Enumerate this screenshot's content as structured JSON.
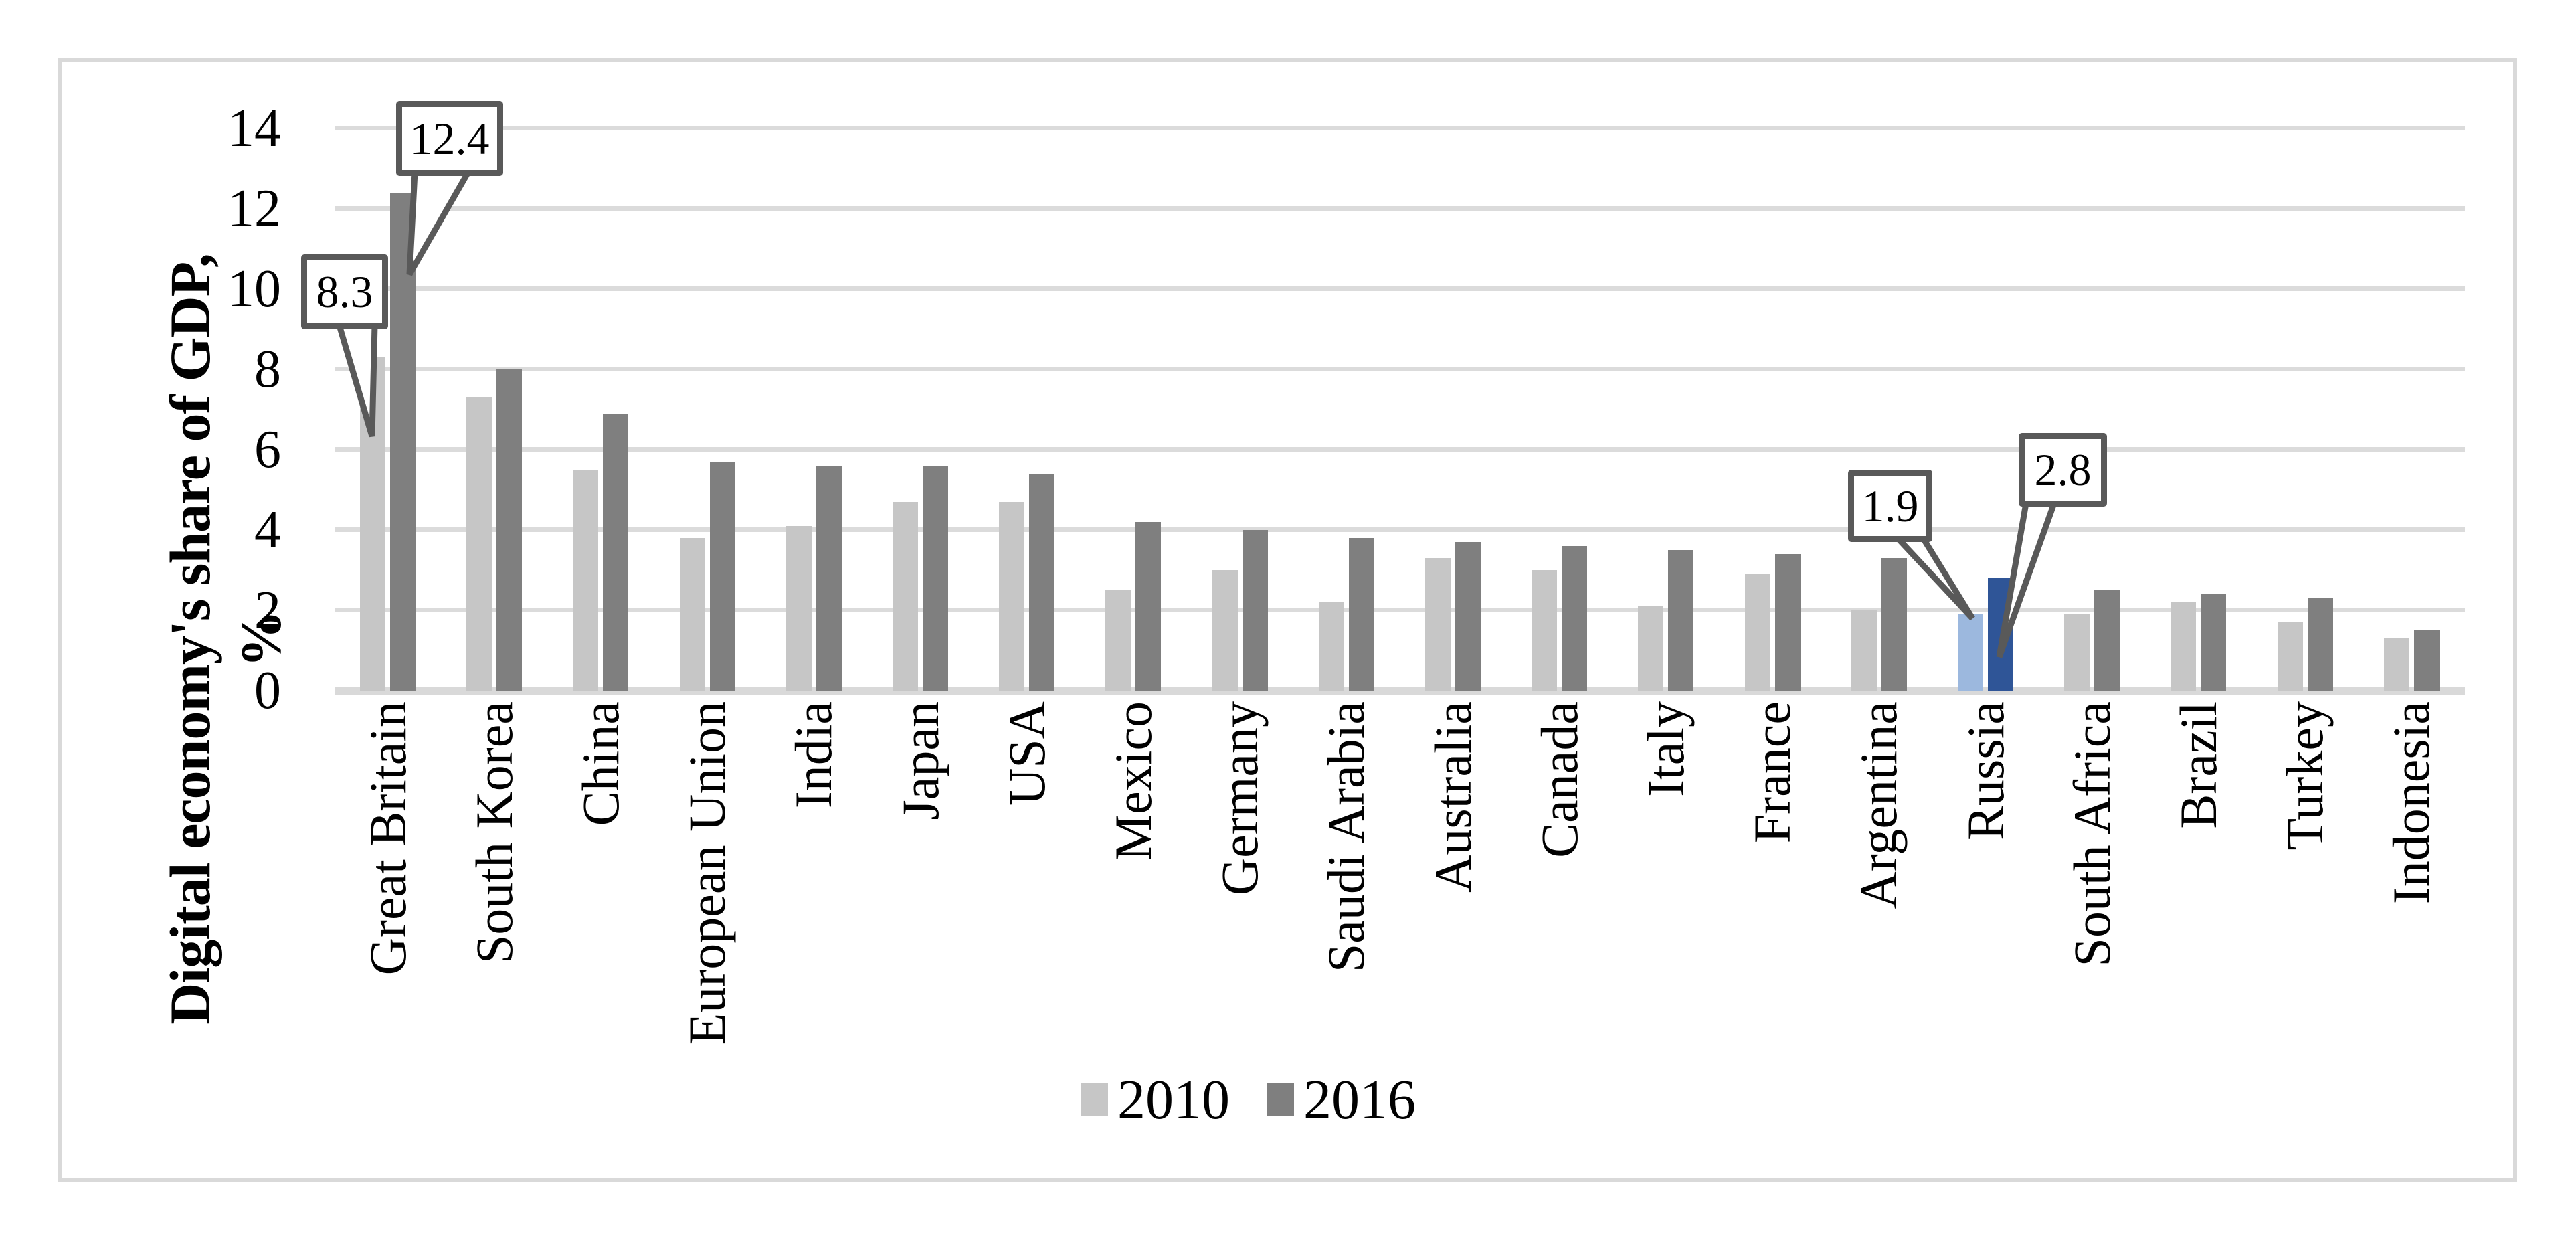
{
  "axis": {
    "y_title_line1": "Digital economy's share of GDP,",
    "y_title_line2": "%"
  },
  "chart_data": {
    "type": "bar",
    "title": "",
    "xlabel": "",
    "ylabel": "Digital economy's share of GDP, %",
    "ylim": [
      0,
      14
    ],
    "yticks": [
      0,
      2,
      4,
      6,
      8,
      10,
      12,
      14
    ],
    "grid": true,
    "legend_position": "bottom",
    "categories": [
      "Great Britain",
      "South Korea",
      "China",
      "European Union",
      "India",
      "Japan",
      "USA",
      "Mexico",
      "Germany",
      "Saudi Arabia",
      "Australia",
      "Canada",
      "Italy",
      "France",
      "Argentina",
      "Russia",
      "South Africa",
      "Brazil",
      "Turkey",
      "Indonesia"
    ],
    "series": [
      {
        "name": "2010",
        "color": "#C6C6C6",
        "values": [
          8.3,
          7.3,
          5.5,
          3.8,
          4.1,
          4.7,
          4.7,
          2.5,
          3.0,
          2.2,
          3.3,
          3.0,
          2.1,
          2.9,
          2.0,
          1.9,
          1.9,
          2.2,
          1.7,
          1.3
        ]
      },
      {
        "name": "2016",
        "color": "#7F7F7F",
        "values": [
          12.4,
          8.0,
          6.9,
          5.7,
          5.6,
          5.6,
          5.4,
          4.2,
          4.0,
          3.8,
          3.7,
          3.6,
          3.5,
          3.4,
          3.3,
          2.8,
          2.5,
          2.4,
          2.3,
          1.5
        ]
      }
    ],
    "highlight": {
      "category": "Russia",
      "color_2010": "#9CB8DE",
      "color_2016": "#2F5597"
    },
    "callouts": [
      {
        "label": "8.3",
        "series": "2010",
        "category": "Great Britain"
      },
      {
        "label": "12.4",
        "series": "2016",
        "category": "Great Britain"
      },
      {
        "label": "1.9",
        "series": "2010",
        "category": "Russia"
      },
      {
        "label": "2.8",
        "series": "2016",
        "category": "Russia"
      }
    ],
    "gridline_color": "#DBDBDB",
    "axis_line_color": "#D9D9D9",
    "callout_border_color": "#595959"
  }
}
